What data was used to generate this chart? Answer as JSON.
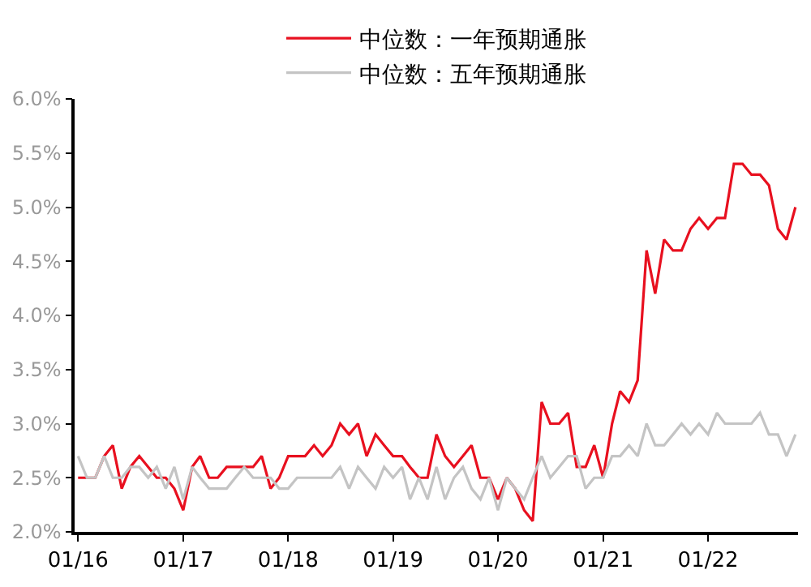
{
  "chart_data": {
    "type": "line",
    "x": [
      "2016-01",
      "2016-02",
      "2016-03",
      "2016-04",
      "2016-05",
      "2016-06",
      "2016-07",
      "2016-08",
      "2016-09",
      "2016-10",
      "2016-11",
      "2016-12",
      "2017-01",
      "2017-02",
      "2017-03",
      "2017-04",
      "2017-05",
      "2017-06",
      "2017-07",
      "2017-08",
      "2017-09",
      "2017-10",
      "2017-11",
      "2017-12",
      "2018-01",
      "2018-02",
      "2018-03",
      "2018-04",
      "2018-05",
      "2018-06",
      "2018-07",
      "2018-08",
      "2018-09",
      "2018-10",
      "2018-11",
      "2018-12",
      "2019-01",
      "2019-02",
      "2019-03",
      "2019-04",
      "2019-05",
      "2019-06",
      "2019-07",
      "2019-08",
      "2019-09",
      "2019-10",
      "2019-11",
      "2019-12",
      "2020-01",
      "2020-02",
      "2020-03",
      "2020-04",
      "2020-05",
      "2020-06",
      "2020-07",
      "2020-08",
      "2020-09",
      "2020-10",
      "2020-11",
      "2020-12",
      "2021-01",
      "2021-02",
      "2021-03",
      "2021-04",
      "2021-05",
      "2021-06",
      "2021-07",
      "2021-08",
      "2021-09",
      "2021-10",
      "2021-11",
      "2021-12",
      "2022-01",
      "2022-02",
      "2022-03",
      "2022-04",
      "2022-05",
      "2022-06",
      "2022-07",
      "2022-08",
      "2022-09",
      "2022-10",
      "2022-11"
    ],
    "series": [
      {
        "name": "中位数：一年预期通胀",
        "color": "#e8101f",
        "values": [
          2.5,
          2.5,
          2.5,
          2.7,
          2.8,
          2.4,
          2.6,
          2.7,
          2.6,
          2.5,
          2.5,
          2.4,
          2.2,
          2.6,
          2.7,
          2.5,
          2.5,
          2.6,
          2.6,
          2.6,
          2.6,
          2.7,
          2.4,
          2.5,
          2.7,
          2.7,
          2.7,
          2.8,
          2.7,
          2.8,
          3.0,
          2.9,
          3.0,
          2.7,
          2.9,
          2.8,
          2.7,
          2.7,
          2.6,
          2.5,
          2.5,
          2.9,
          2.7,
          2.6,
          2.7,
          2.8,
          2.5,
          2.5,
          2.3,
          2.5,
          2.4,
          2.2,
          2.1,
          3.2,
          3.0,
          3.0,
          3.1,
          2.6,
          2.6,
          2.8,
          2.5,
          3.0,
          3.3,
          3.2,
          3.4,
          4.6,
          4.2,
          4.7,
          4.6,
          4.6,
          4.8,
          4.9,
          4.8,
          4.9,
          4.9,
          5.4,
          5.4,
          5.3,
          5.3,
          5.2,
          4.8,
          4.7,
          5.0
        ]
      },
      {
        "name": "中位数：五年预期通胀",
        "color": "#c4c4c4",
        "values": [
          2.7,
          2.5,
          2.5,
          2.7,
          2.5,
          2.5,
          2.6,
          2.6,
          2.5,
          2.6,
          2.4,
          2.6,
          2.3,
          2.6,
          2.5,
          2.4,
          2.4,
          2.4,
          2.5,
          2.6,
          2.5,
          2.5,
          2.5,
          2.4,
          2.4,
          2.5,
          2.5,
          2.5,
          2.5,
          2.5,
          2.6,
          2.4,
          2.6,
          2.5,
          2.4,
          2.6,
          2.5,
          2.6,
          2.3,
          2.5,
          2.3,
          2.6,
          2.3,
          2.5,
          2.6,
          2.4,
          2.3,
          2.5,
          2.2,
          2.5,
          2.4,
          2.3,
          2.5,
          2.7,
          2.5,
          2.6,
          2.7,
          2.7,
          2.4,
          2.5,
          2.5,
          2.7,
          2.7,
          2.8,
          2.7,
          3.0,
          2.8,
          2.8,
          2.9,
          3.0,
          2.9,
          3.0,
          2.9,
          3.1,
          3.0,
          3.0,
          3.0,
          3.0,
          3.1,
          2.9,
          2.9,
          2.7,
          2.9
        ]
      }
    ],
    "xlim": [
      "2015-12-20",
      "2022-11-10"
    ],
    "xticks": [
      {
        "value": "2016-01",
        "label": "01/16"
      },
      {
        "value": "2017-01",
        "label": "01/17"
      },
      {
        "value": "2018-01",
        "label": "01/18"
      },
      {
        "value": "2019-01",
        "label": "01/19"
      },
      {
        "value": "2020-01",
        "label": "01/20"
      },
      {
        "value": "2021-01",
        "label": "01/21"
      },
      {
        "value": "2022-01",
        "label": "01/22"
      }
    ],
    "ylim": [
      2.0,
      6.0
    ],
    "yticks": [
      {
        "value": 2.0,
        "label": "2.0%"
      },
      {
        "value": 2.5,
        "label": "2.5%"
      },
      {
        "value": 3.0,
        "label": "3.0%"
      },
      {
        "value": 3.5,
        "label": "3.5%"
      },
      {
        "value": 4.0,
        "label": "4.0%"
      },
      {
        "value": 4.5,
        "label": "4.5%"
      },
      {
        "value": 5.0,
        "label": "5.0%"
      },
      {
        "value": 5.5,
        "label": "5.5%"
      },
      {
        "value": 6.0,
        "label": "6.0%"
      }
    ],
    "grid": false,
    "legend": "top",
    "marker": "none",
    "line_style": "solid"
  }
}
